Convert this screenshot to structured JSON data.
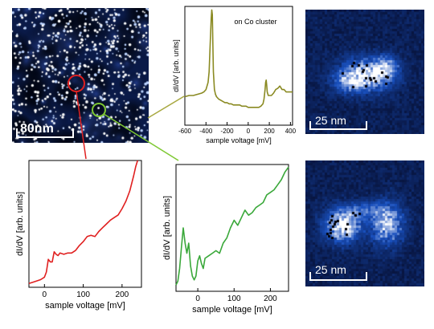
{
  "stm_image": {
    "scale_label": "80nm"
  },
  "map_top": {
    "scale_label": "25 nm"
  },
  "map_bottom": {
    "scale_label": "25 nm"
  },
  "chart_data": [
    {
      "id": "top",
      "type": "line",
      "annotation": "on Co cluster",
      "xlabel": "sample voltage [mV]",
      "ylabel": "dI/dV [arb. units]",
      "xlim": [
        -600,
        420
      ],
      "ylim": [
        0,
        1
      ],
      "xticks": [
        -600,
        -400,
        -200,
        0,
        200,
        400
      ],
      "color": "#8a8a22",
      "series": [
        {
          "x": [
            -600,
            -560,
            -520,
            -480,
            -440,
            -420,
            -400,
            -380,
            -370,
            -360,
            -350,
            -345,
            -340,
            -335,
            -330,
            -320,
            -310,
            -300,
            -280,
            -260,
            -240,
            -220,
            -200,
            -180,
            -160,
            -140,
            -120,
            -100,
            -80,
            -60,
            -40,
            -20,
            0,
            20,
            40,
            60,
            80,
            100,
            120,
            140,
            150,
            160,
            165,
            170,
            175,
            180,
            190,
            200,
            220,
            240,
            260,
            280,
            300,
            320,
            340,
            360,
            380,
            400,
            420
          ],
          "y": [
            0.24,
            0.25,
            0.25,
            0.26,
            0.27,
            0.28,
            0.3,
            0.36,
            0.45,
            0.68,
            0.9,
            0.97,
            0.93,
            0.7,
            0.45,
            0.3,
            0.26,
            0.24,
            0.22,
            0.21,
            0.2,
            0.19,
            0.19,
            0.18,
            0.18,
            0.17,
            0.17,
            0.17,
            0.17,
            0.16,
            0.16,
            0.16,
            0.15,
            0.15,
            0.15,
            0.15,
            0.15,
            0.15,
            0.16,
            0.18,
            0.22,
            0.3,
            0.36,
            0.38,
            0.34,
            0.28,
            0.25,
            0.25,
            0.25,
            0.27,
            0.3,
            0.31,
            0.33,
            0.3,
            0.3,
            0.28,
            0.28,
            0.28,
            0.28
          ]
        }
      ]
    },
    {
      "id": "left",
      "type": "line",
      "xlabel": "sample voltage [mV]",
      "ylabel": "dI/dV [arb. units]",
      "xlim": [
        -40,
        250
      ],
      "ylim": [
        0,
        1
      ],
      "xticks": [
        0,
        100,
        200
      ],
      "color": "#e02020",
      "series": [
        {
          "x": [
            -40,
            -30,
            -20,
            -10,
            0,
            5,
            10,
            15,
            20,
            25,
            30,
            35,
            40,
            50,
            60,
            70,
            80,
            90,
            100,
            110,
            120,
            130,
            140,
            150,
            160,
            170,
            180,
            190,
            200,
            210,
            220,
            230,
            235,
            240
          ],
          "y": [
            0.03,
            0.04,
            0.05,
            0.06,
            0.08,
            0.12,
            0.22,
            0.2,
            0.2,
            0.28,
            0.26,
            0.25,
            0.27,
            0.26,
            0.27,
            0.27,
            0.29,
            0.33,
            0.36,
            0.4,
            0.41,
            0.4,
            0.44,
            0.47,
            0.5,
            0.53,
            0.55,
            0.57,
            0.62,
            0.68,
            0.76,
            0.88,
            0.95,
            1.0
          ]
        }
      ]
    },
    {
      "id": "right",
      "type": "line",
      "xlabel": "sample voltage [mV]",
      "ylabel": "dI/dV [arb. units]",
      "xlim": [
        -60,
        250
      ],
      "ylim": [
        0,
        1
      ],
      "xticks": [
        0,
        100,
        200
      ],
      "color": "#3aa83a",
      "series": [
        {
          "x": [
            -60,
            -55,
            -50,
            -45,
            -40,
            -35,
            -30,
            -25,
            -20,
            -15,
            -10,
            -5,
            0,
            5,
            10,
            15,
            20,
            30,
            40,
            50,
            60,
            70,
            80,
            90,
            100,
            110,
            120,
            130,
            140,
            150,
            160,
            170,
            180,
            190,
            200,
            210,
            220,
            230,
            240,
            250
          ],
          "y": [
            0.05,
            0.08,
            0.18,
            0.35,
            0.5,
            0.38,
            0.3,
            0.38,
            0.2,
            0.12,
            0.09,
            0.12,
            0.24,
            0.28,
            0.22,
            0.18,
            0.26,
            0.28,
            0.3,
            0.32,
            0.3,
            0.38,
            0.42,
            0.5,
            0.56,
            0.52,
            0.58,
            0.64,
            0.6,
            0.62,
            0.66,
            0.68,
            0.7,
            0.76,
            0.78,
            0.8,
            0.84,
            0.88,
            0.94,
            0.98
          ]
        }
      ]
    }
  ]
}
